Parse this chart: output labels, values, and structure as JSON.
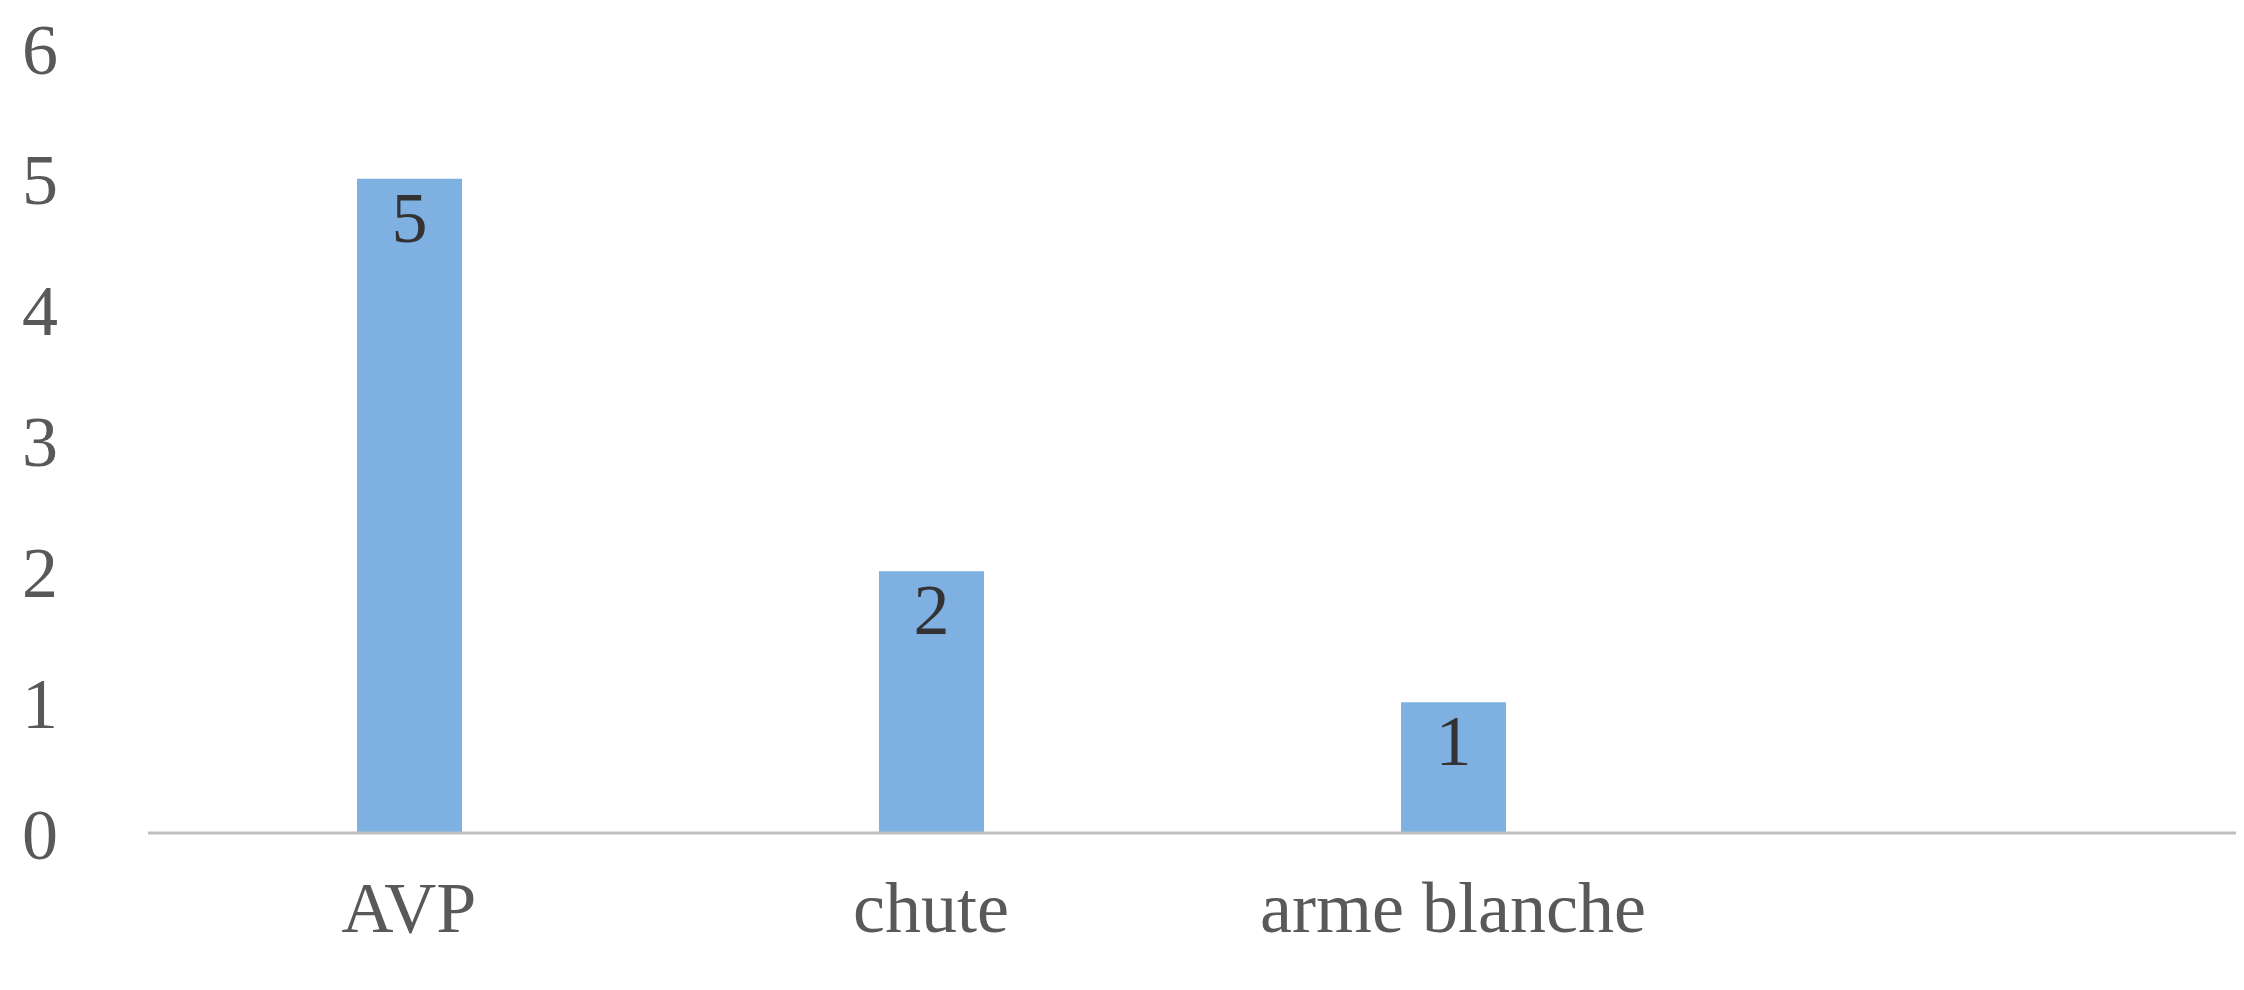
{
  "chart_data": {
    "type": "bar",
    "categories": [
      "AVP",
      "chute",
      "arme blanche",
      null
    ],
    "values": [
      5,
      2,
      1,
      null
    ],
    "color": "#7eb0e2",
    "ylim": [
      0,
      6
    ],
    "yticks": [
      0,
      1,
      2,
      3,
      4,
      5,
      6
    ],
    "data_labels": true,
    "grid": false,
    "legend": false
  }
}
